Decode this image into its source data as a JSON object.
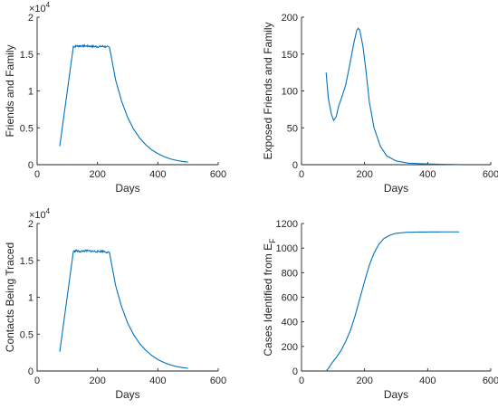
{
  "chart_data": [
    {
      "type": "line",
      "xlabel": "Days",
      "ylabel": "Friends and Family",
      "xlim": [
        0,
        600
      ],
      "ylim": [
        0,
        20000
      ],
      "xticks": [
        "0",
        "200",
        "400",
        "600"
      ],
      "yticks": [
        "0",
        "0.5",
        "1",
        "1.5",
        "2"
      ],
      "yexp": {
        "base": "×10",
        "power": "4"
      },
      "noise": 250,
      "series": [
        {
          "x": [
            75,
            120,
            130,
            140,
            160,
            180,
            200,
            220,
            240,
            260,
            280,
            300,
            320,
            340,
            360,
            380,
            400,
            420,
            440,
            460,
            480,
            500
          ],
          "y": [
            2500,
            16000,
            16100,
            16100,
            16100,
            16050,
            16000,
            16050,
            15900,
            11500,
            8600,
            6400,
            4800,
            3600,
            2700,
            2000,
            1500,
            1100,
            800,
            600,
            450,
            350
          ]
        }
      ]
    },
    {
      "type": "line",
      "xlabel": "Days",
      "ylabel": "Exposed Friends and Family",
      "xlim": [
        0,
        600
      ],
      "ylim": [
        0,
        200
      ],
      "xticks": [
        "0",
        "200",
        "400",
        "600"
      ],
      "yticks": [
        "0",
        "50",
        "100",
        "150",
        "200"
      ],
      "series": [
        {
          "x": [
            78,
            85,
            95,
            102,
            110,
            118,
            125,
            140,
            155,
            165,
            175,
            180,
            185,
            195,
            205,
            215,
            230,
            250,
            270,
            300,
            340,
            400,
            450,
            500
          ],
          "y": [
            125,
            90,
            68,
            60,
            65,
            80,
            88,
            108,
            140,
            163,
            182,
            185,
            182,
            160,
            125,
            85,
            50,
            25,
            12,
            5,
            2,
            1,
            0.5,
            0.2
          ]
        }
      ]
    },
    {
      "type": "line",
      "xlabel": "Days",
      "ylabel": "Contacts Being Traced",
      "xlim": [
        0,
        600
      ],
      "ylim": [
        0,
        20000
      ],
      "xticks": [
        "0",
        "200",
        "400",
        "600"
      ],
      "yticks": [
        "0",
        "0.5",
        "1",
        "1.5",
        "2"
      ],
      "yexp": {
        "base": "×10",
        "power": "4"
      },
      "noise": 250,
      "series": [
        {
          "x": [
            75,
            120,
            130,
            140,
            160,
            180,
            200,
            220,
            240,
            260,
            280,
            300,
            320,
            340,
            360,
            380,
            400,
            420,
            440,
            460,
            480,
            500
          ],
          "y": [
            2600,
            16200,
            16300,
            16200,
            16300,
            16250,
            16200,
            16250,
            16000,
            11600,
            8700,
            6500,
            4900,
            3700,
            2800,
            2100,
            1550,
            1150,
            850,
            620,
            470,
            370
          ]
        }
      ]
    },
    {
      "type": "line",
      "xlabel": "Days",
      "ylabel": "Cases Identified from E",
      "ylabel_sub": "F",
      "xlim": [
        0,
        600
      ],
      "ylim": [
        0,
        1200
      ],
      "xticks": [
        "0",
        "200",
        "400",
        "600"
      ],
      "yticks": [
        "0",
        "200",
        "400",
        "600",
        "800",
        "1000",
        "1200"
      ],
      "series": [
        {
          "x": [
            78,
            85,
            95,
            110,
            125,
            140,
            155,
            170,
            185,
            200,
            215,
            230,
            245,
            260,
            280,
            300,
            330,
            360,
            400,
            450,
            500
          ],
          "y": [
            0,
            20,
            60,
            110,
            165,
            240,
            330,
            450,
            590,
            730,
            860,
            960,
            1030,
            1075,
            1105,
            1120,
            1128,
            1130,
            1131,
            1132,
            1132
          ]
        }
      ]
    }
  ]
}
